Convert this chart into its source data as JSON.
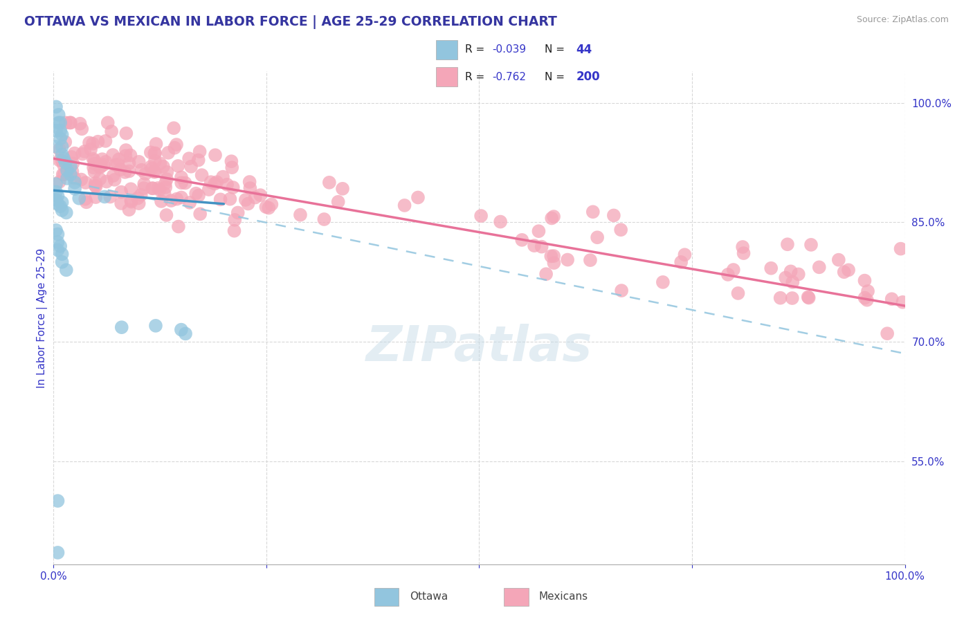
{
  "title": "OTTAWA VS MEXICAN IN LABOR FORCE | AGE 25-29 CORRELATION CHART",
  "source": "Source: ZipAtlas.com",
  "ylabel": "In Labor Force | Age 25-29",
  "xlim": [
    0.0,
    1.0
  ],
  "ylim": [
    0.42,
    1.04
  ],
  "yticks": [
    0.55,
    0.7,
    0.85,
    1.0
  ],
  "ytick_labels": [
    "55.0%",
    "70.0%",
    "85.0%",
    "100.0%"
  ],
  "xticks": [
    0.0,
    0.25,
    0.5,
    0.75,
    1.0
  ],
  "xtick_labels": [
    "0.0%",
    "",
    "",
    "",
    "100.0%"
  ],
  "legend_ottawa_R": "-0.039",
  "legend_ottawa_N": "44",
  "legend_mexican_R": "-0.762",
  "legend_mexican_N": "200",
  "ottawa_color": "#92c5de",
  "mexican_color": "#f4a6b8",
  "ottawa_line_color": "#4393c3",
  "mexican_line_color": "#e87299",
  "dashed_line_color": "#92c5de",
  "background_color": "#ffffff",
  "grid_color": "#d8d8d8",
  "title_color": "#3535a0",
  "label_color": "#3535c8",
  "watermark_color": "#c8dce8",
  "watermark": "ZIPatlas",
  "ottawa_points": [
    [
      0.003,
      0.995
    ],
    [
      0.006,
      0.985
    ],
    [
      0.006,
      0.975
    ],
    [
      0.008,
      0.975
    ],
    [
      0.008,
      0.965
    ],
    [
      0.008,
      0.955
    ],
    [
      0.01,
      0.96
    ],
    [
      0.01,
      0.945
    ],
    [
      0.01,
      0.935
    ],
    [
      0.003,
      0.965
    ],
    [
      0.003,
      0.945
    ],
    [
      0.012,
      0.93
    ],
    [
      0.014,
      0.925
    ],
    [
      0.016,
      0.915
    ],
    [
      0.016,
      0.905
    ],
    [
      0.02,
      0.92
    ],
    [
      0.02,
      0.91
    ],
    [
      0.025,
      0.9
    ],
    [
      0.025,
      0.892
    ],
    [
      0.003,
      0.898
    ],
    [
      0.003,
      0.888
    ],
    [
      0.003,
      0.878
    ],
    [
      0.005,
      0.883
    ],
    [
      0.005,
      0.873
    ],
    [
      0.008,
      0.87
    ],
    [
      0.01,
      0.875
    ],
    [
      0.01,
      0.865
    ],
    [
      0.015,
      0.862
    ],
    [
      0.03,
      0.88
    ],
    [
      0.06,
      0.882
    ],
    [
      0.003,
      0.84
    ],
    [
      0.005,
      0.835
    ],
    [
      0.005,
      0.825
    ],
    [
      0.005,
      0.815
    ],
    [
      0.008,
      0.82
    ],
    [
      0.01,
      0.81
    ],
    [
      0.01,
      0.8
    ],
    [
      0.015,
      0.79
    ],
    [
      0.15,
      0.715
    ],
    [
      0.155,
      0.71
    ],
    [
      0.08,
      0.718
    ],
    [
      0.12,
      0.72
    ],
    [
      0.005,
      0.5
    ],
    [
      0.005,
      0.435
    ]
  ],
  "ottawa_line": {
    "x0": 0.0,
    "y0": 0.89,
    "x1": 0.2,
    "y1": 0.873
  },
  "mexican_line": {
    "x0": 0.0,
    "y0": 0.93,
    "x1": 1.0,
    "y1": 0.745
  },
  "dashed_line": {
    "x0": 0.02,
    "y0": 0.9,
    "x1": 1.0,
    "y1": 0.685
  }
}
